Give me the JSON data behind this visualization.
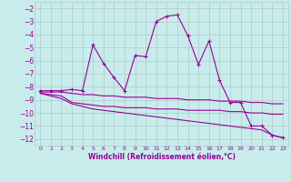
{
  "xlabel": "Windchill (Refroidissement éolien,°C)",
  "bg_color": "#c8ecec",
  "grid_color": "#b0c8c8",
  "line_color": "#990099",
  "xlim": [
    -0.5,
    23.5
  ],
  "ylim": [
    -12.5,
    -1.5
  ],
  "xticks": [
    0,
    1,
    2,
    3,
    4,
    5,
    6,
    7,
    8,
    9,
    10,
    11,
    12,
    13,
    14,
    15,
    16,
    17,
    18,
    19,
    20,
    21,
    22,
    23
  ],
  "yticks": [
    -12,
    -11,
    -10,
    -9,
    -8,
    -7,
    -6,
    -5,
    -4,
    -3,
    -2
  ],
  "line1_x": [
    0,
    1,
    2,
    3,
    4,
    5,
    6,
    7,
    8,
    9,
    10,
    11,
    12,
    13,
    14,
    15,
    16,
    17,
    18,
    19,
    20,
    21,
    22,
    23
  ],
  "line1_y": [
    -8.3,
    -8.3,
    -8.3,
    -8.2,
    -8.3,
    -4.8,
    -6.2,
    -7.3,
    -8.3,
    -5.6,
    -5.7,
    -3.0,
    -2.6,
    -2.5,
    -4.1,
    -6.3,
    -4.5,
    -7.5,
    -9.2,
    -9.2,
    -11.0,
    -11.0,
    -11.7,
    -11.9
  ],
  "line2_x": [
    0,
    1,
    2,
    3,
    4,
    5,
    6,
    7,
    8,
    9,
    10,
    11,
    12,
    13,
    14,
    15,
    16,
    17,
    18,
    19,
    20,
    21,
    22,
    23
  ],
  "line2_y": [
    -8.4,
    -8.4,
    -8.4,
    -8.5,
    -8.6,
    -8.6,
    -8.7,
    -8.7,
    -8.8,
    -8.8,
    -8.8,
    -8.9,
    -8.9,
    -8.9,
    -9.0,
    -9.0,
    -9.0,
    -9.1,
    -9.1,
    -9.1,
    -9.2,
    -9.2,
    -9.3,
    -9.3
  ],
  "line3_x": [
    0,
    1,
    2,
    3,
    4,
    5,
    6,
    7,
    8,
    9,
    10,
    11,
    12,
    13,
    14,
    15,
    16,
    17,
    18,
    19,
    20,
    21,
    22,
    23
  ],
  "line3_y": [
    -8.5,
    -8.6,
    -8.7,
    -9.2,
    -9.3,
    -9.4,
    -9.5,
    -9.5,
    -9.6,
    -9.6,
    -9.6,
    -9.7,
    -9.7,
    -9.7,
    -9.8,
    -9.8,
    -9.8,
    -9.8,
    -9.9,
    -9.9,
    -10.0,
    -10.0,
    -10.1,
    -10.1
  ],
  "line4_x": [
    0,
    1,
    2,
    3,
    4,
    5,
    6,
    7,
    8,
    9,
    10,
    11,
    12,
    13,
    14,
    15,
    16,
    17,
    18,
    19,
    20,
    21,
    22,
    23
  ],
  "line4_y": [
    -8.5,
    -8.7,
    -8.9,
    -9.3,
    -9.5,
    -9.7,
    -9.8,
    -9.9,
    -10.0,
    -10.1,
    -10.2,
    -10.3,
    -10.4,
    -10.5,
    -10.6,
    -10.7,
    -10.8,
    -10.9,
    -11.0,
    -11.1,
    -11.2,
    -11.3,
    -11.7,
    -11.9
  ]
}
